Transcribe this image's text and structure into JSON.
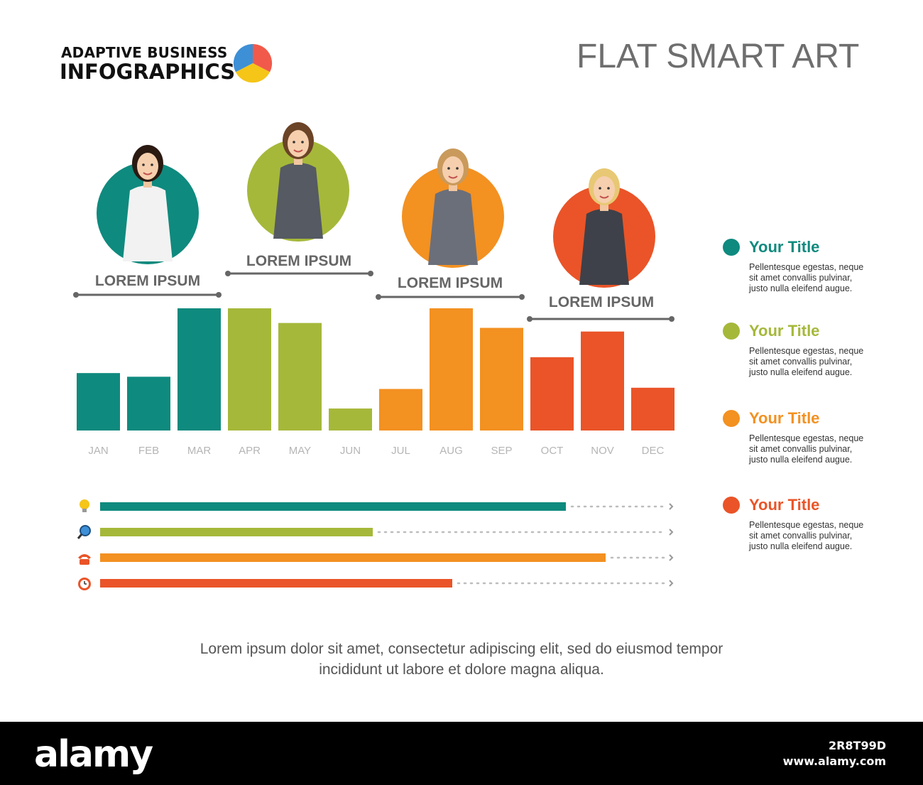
{
  "header": {
    "brand_line1": "ADAPTIVE BUSINESS",
    "brand_line2": "INFOGRAPHICS",
    "title": "FLAT SMART ART"
  },
  "colors": {
    "teal": "#0f8a7e",
    "olive": "#a6b83a",
    "orange": "#f39121",
    "red": "#ea5428"
  },
  "people": [
    {
      "label": "LOREM IPSUM",
      "color": "#0f8a7e"
    },
    {
      "label": "LOREM IPSUM",
      "color": "#a6b83a"
    },
    {
      "label": "LOREM IPSUM",
      "color": "#f39121"
    },
    {
      "label": "LOREM IPSUM",
      "color": "#ea5428"
    }
  ],
  "chart_data": [
    {
      "type": "bar",
      "categories": [
        "JAN",
        "FEB",
        "MAR",
        "APR",
        "MAY",
        "JUN",
        "JUL",
        "AUG",
        "SEP",
        "OCT",
        "NOV",
        "DEC"
      ],
      "values": [
        47,
        44,
        100,
        100,
        88,
        18,
        34,
        100,
        84,
        60,
        81,
        35
      ],
      "ylim": [
        0,
        100
      ],
      "bar_colors": [
        "#0f8a7e",
        "#0f8a7e",
        "#0f8a7e",
        "#a6b83a",
        "#a6b83a",
        "#a6b83a",
        "#f39121",
        "#f39121",
        "#f39121",
        "#ea5428",
        "#ea5428",
        "#ea5428"
      ]
    },
    {
      "type": "bar",
      "orientation": "horizontal",
      "values": [
        82,
        48,
        89,
        62
      ],
      "xlim": [
        0,
        100
      ],
      "icons": [
        "lightbulb-icon",
        "magnifier-icon",
        "telephone-icon",
        "alarm-clock-icon"
      ],
      "bar_colors": [
        "#0f8a7e",
        "#a6b83a",
        "#f39121",
        "#ea5428"
      ]
    }
  ],
  "legend": [
    {
      "title": "Your Title",
      "text": "Pellentesque egestas, neque sit amet convallis pulvinar, justo nulla eleifend augue.",
      "color": "#0f8a7e"
    },
    {
      "title": "Your Title",
      "text": "Pellentesque egestas, neque sit amet convallis pulvinar, justo nulla eleifend augue.",
      "color": "#a6b83a"
    },
    {
      "title": "Your Title",
      "text": "Pellentesque egestas, neque sit amet convallis pulvinar, justo nulla eleifend augue.",
      "color": "#f39121"
    },
    {
      "title": "Your Title",
      "text": "Pellentesque egestas, neque sit amet convallis pulvinar, justo nulla eleifend augue.",
      "color": "#ea5428"
    }
  ],
  "caption": {
    "line1": "Lorem ipsum dolor sit amet, consectetur adipiscing elit, sed do eiusmod tempor",
    "line2": "incididunt ut labore et dolore magna aliqua."
  },
  "watermark": {
    "logo": "alamy",
    "image_id": "2R8T99D",
    "site": "www.alamy.com"
  }
}
